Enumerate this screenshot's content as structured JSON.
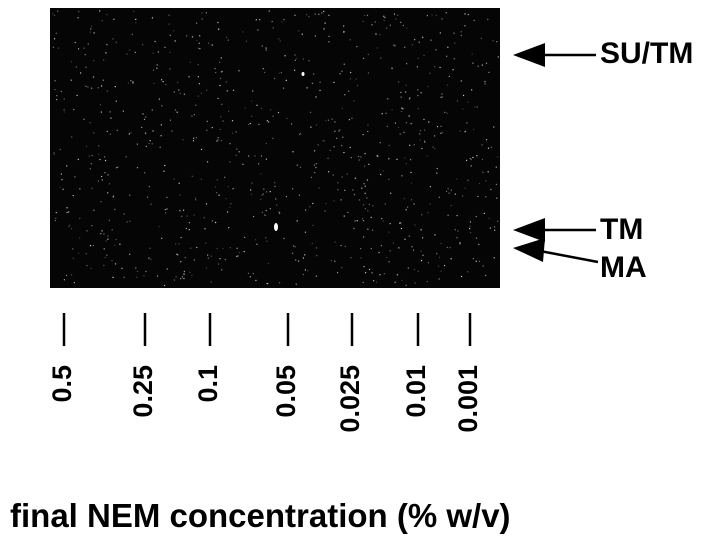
{
  "figure": {
    "bands": [
      {
        "label": "SU/TM"
      },
      {
        "label": "TM"
      },
      {
        "label": "MA"
      }
    ],
    "lanes": [
      "0.5",
      "0.25",
      "0.1",
      "0.05",
      "0.025",
      "0.01",
      "0.001"
    ],
    "axis_label": "final NEM concentration (% w/v)"
  }
}
